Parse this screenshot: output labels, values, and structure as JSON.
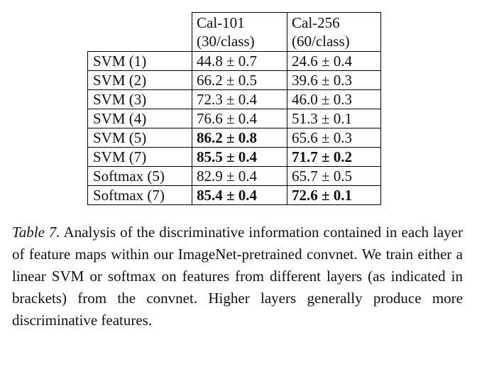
{
  "table": {
    "header": [
      [
        "Cal-101",
        "(30/class)"
      ],
      [
        "Cal-256",
        "(60/class)"
      ]
    ],
    "rows": [
      [
        "SVM (1)",
        "44.8 ± 0.7",
        "24.6 ± 0.4"
      ],
      [
        "SVM (2)",
        "66.2 ± 0.5",
        "39.6 ± 0.3"
      ],
      [
        "SVM (3)",
        "72.3 ± 0.4",
        "46.0 ± 0.3"
      ],
      [
        "SVM (4)",
        "76.6 ± 0.4",
        "51.3 ± 0.1"
      ],
      [
        "SVM (5)",
        "86.2 ± 0.8",
        "65.6 ± 0.3"
      ],
      [
        "SVM (7)",
        "85.5 ± 0.4",
        "71.7 ± 0.2"
      ],
      [
        "Softmax (5)",
        "82.9 ± 0.4",
        "65.7 ± 0.5"
      ],
      [
        "Softmax (7)",
        "85.4 ± 0.4",
        "72.6 ± 0.1"
      ]
    ]
  },
  "caption": {
    "label": "Table 7.",
    "text": "Analysis of the discriminative information contained in each layer of feature maps within our ImageNet-pretrained convnet. We train either a linear SVM or softmax on features from different layers (as indicated in brackets) from the convnet. Higher layers generally produce more discriminative features."
  }
}
